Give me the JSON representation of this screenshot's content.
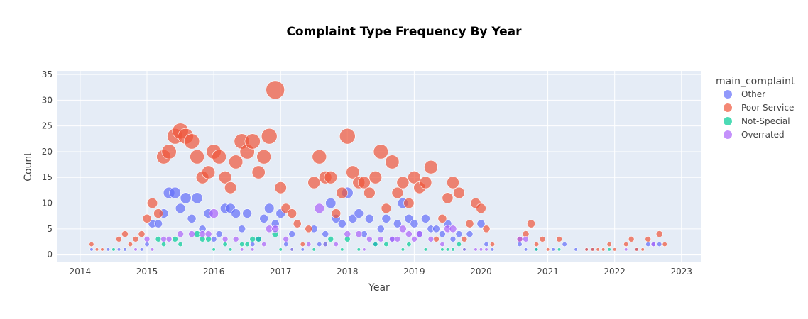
{
  "chart_data": {
    "type": "scatter",
    "title": "Complaint Type Frequency By Year",
    "xlabel": "Year",
    "ylabel": "Count",
    "xlim": [
      2013.65,
      2023.3
    ],
    "ylim": [
      -1.5,
      35.7
    ],
    "x_ticks": [
      "2014",
      "2015",
      "2016",
      "2017",
      "2018",
      "2019",
      "2020",
      "2021",
      "2022",
      "2023"
    ],
    "y_ticks": [
      0,
      5,
      10,
      15,
      20,
      25,
      30,
      35
    ],
    "grid": true,
    "legend_title": "main_complaint",
    "legend_position": "right",
    "size_max_value": 32,
    "series": [
      {
        "name": "Other",
        "color": "#636efa",
        "points": [
          [
            2014.17,
            1
          ],
          [
            2014.42,
            1
          ],
          [
            2014.58,
            1
          ],
          [
            2014.67,
            1
          ],
          [
            2014.92,
            1
          ],
          [
            2015.0,
            2
          ],
          [
            2015.08,
            6
          ],
          [
            2015.17,
            6
          ],
          [
            2015.25,
            8
          ],
          [
            2015.33,
            12
          ],
          [
            2015.42,
            12
          ],
          [
            2015.5,
            9
          ],
          [
            2015.58,
            11
          ],
          [
            2015.67,
            7
          ],
          [
            2015.75,
            11
          ],
          [
            2015.83,
            5
          ],
          [
            2015.92,
            8
          ],
          [
            2016.0,
            3
          ],
          [
            2016.08,
            4
          ],
          [
            2016.17,
            9
          ],
          [
            2016.25,
            9
          ],
          [
            2016.33,
            8
          ],
          [
            2016.42,
            5
          ],
          [
            2016.5,
            8
          ],
          [
            2016.58,
            2
          ],
          [
            2016.67,
            3
          ],
          [
            2016.75,
            7
          ],
          [
            2016.83,
            9
          ],
          [
            2016.92,
            6
          ],
          [
            2017.0,
            8
          ],
          [
            2017.08,
            2
          ],
          [
            2017.17,
            4
          ],
          [
            2017.33,
            1
          ],
          [
            2017.5,
            5
          ],
          [
            2017.58,
            2
          ],
          [
            2017.67,
            4
          ],
          [
            2017.75,
            10
          ],
          [
            2017.83,
            7
          ],
          [
            2017.92,
            6
          ],
          [
            2018.0,
            12
          ],
          [
            2018.08,
            7
          ],
          [
            2018.17,
            8
          ],
          [
            2018.25,
            4
          ],
          [
            2018.33,
            7
          ],
          [
            2018.42,
            2
          ],
          [
            2018.5,
            5
          ],
          [
            2018.58,
            7
          ],
          [
            2018.67,
            3
          ],
          [
            2018.75,
            6
          ],
          [
            2018.83,
            10
          ],
          [
            2018.92,
            7
          ],
          [
            2019.0,
            6
          ],
          [
            2019.08,
            4
          ],
          [
            2019.17,
            7
          ],
          [
            2019.25,
            5
          ],
          [
            2019.33,
            5
          ],
          [
            2019.42,
            4
          ],
          [
            2019.5,
            6
          ],
          [
            2019.58,
            3
          ],
          [
            2019.67,
            4
          ],
          [
            2019.83,
            4
          ],
          [
            2020.0,
            6
          ],
          [
            2020.08,
            2
          ],
          [
            2020.17,
            1
          ],
          [
            2020.58,
            2
          ],
          [
            2020.67,
            1
          ],
          [
            2020.83,
            1
          ],
          [
            2021.08,
            1
          ],
          [
            2021.25,
            2
          ],
          [
            2021.42,
            1
          ],
          [
            2021.58,
            1
          ],
          [
            2021.67,
            1
          ],
          [
            2022.33,
            1
          ],
          [
            2022.5,
            2
          ],
          [
            2022.58,
            2
          ],
          [
            2022.67,
            2
          ]
        ]
      },
      {
        "name": "Poor-Service",
        "color": "#ef553b",
        "points": [
          [
            2014.17,
            2
          ],
          [
            2014.25,
            1
          ],
          [
            2014.33,
            1
          ],
          [
            2014.58,
            3
          ],
          [
            2014.67,
            4
          ],
          [
            2014.75,
            2
          ],
          [
            2014.83,
            3
          ],
          [
            2014.92,
            4
          ],
          [
            2015.0,
            7
          ],
          [
            2015.08,
            10
          ],
          [
            2015.17,
            8
          ],
          [
            2015.25,
            19
          ],
          [
            2015.33,
            20
          ],
          [
            2015.42,
            23
          ],
          [
            2015.5,
            24
          ],
          [
            2015.58,
            23
          ],
          [
            2015.67,
            22
          ],
          [
            2015.75,
            19
          ],
          [
            2015.83,
            15
          ],
          [
            2015.92,
            16
          ],
          [
            2016.0,
            20
          ],
          [
            2016.08,
            19
          ],
          [
            2016.17,
            15
          ],
          [
            2016.25,
            13
          ],
          [
            2016.33,
            18
          ],
          [
            2016.42,
            22
          ],
          [
            2016.5,
            20
          ],
          [
            2016.58,
            22
          ],
          [
            2016.67,
            16
          ],
          [
            2016.75,
            19
          ],
          [
            2016.83,
            23
          ],
          [
            2016.92,
            32
          ],
          [
            2017.0,
            13
          ],
          [
            2017.08,
            9
          ],
          [
            2017.17,
            8
          ],
          [
            2017.25,
            6
          ],
          [
            2017.33,
            2
          ],
          [
            2017.42,
            5
          ],
          [
            2017.5,
            14
          ],
          [
            2017.58,
            19
          ],
          [
            2017.67,
            15
          ],
          [
            2017.75,
            15
          ],
          [
            2017.83,
            8
          ],
          [
            2017.92,
            12
          ],
          [
            2018.0,
            23
          ],
          [
            2018.08,
            16
          ],
          [
            2018.17,
            14
          ],
          [
            2018.25,
            14
          ],
          [
            2018.33,
            12
          ],
          [
            2018.42,
            15
          ],
          [
            2018.5,
            20
          ],
          [
            2018.58,
            9
          ],
          [
            2018.67,
            18
          ],
          [
            2018.75,
            12
          ],
          [
            2018.83,
            14
          ],
          [
            2018.92,
            10
          ],
          [
            2019.0,
            15
          ],
          [
            2019.08,
            13
          ],
          [
            2019.17,
            14
          ],
          [
            2019.25,
            17
          ],
          [
            2019.33,
            3
          ],
          [
            2019.42,
            7
          ],
          [
            2019.5,
            11
          ],
          [
            2019.58,
            14
          ],
          [
            2019.67,
            12
          ],
          [
            2019.75,
            3
          ],
          [
            2019.83,
            6
          ],
          [
            2019.92,
            10
          ],
          [
            2020.0,
            9
          ],
          [
            2020.08,
            5
          ],
          [
            2020.17,
            2
          ],
          [
            2020.58,
            3
          ],
          [
            2020.67,
            4
          ],
          [
            2020.75,
            6
          ],
          [
            2020.83,
            2
          ],
          [
            2020.92,
            3
          ],
          [
            2021.0,
            1
          ],
          [
            2021.17,
            3
          ],
          [
            2021.58,
            1
          ],
          [
            2021.67,
            1
          ],
          [
            2021.75,
            1
          ],
          [
            2021.83,
            1
          ],
          [
            2021.92,
            2
          ],
          [
            2022.0,
            1
          ],
          [
            2022.17,
            2
          ],
          [
            2022.25,
            3
          ],
          [
            2022.33,
            1
          ],
          [
            2022.42,
            1
          ],
          [
            2022.5,
            3
          ],
          [
            2022.67,
            4
          ],
          [
            2022.75,
            2
          ]
        ]
      },
      {
        "name": "Not-Special",
        "color": "#00cc96",
        "points": [
          [
            2014.5,
            1
          ],
          [
            2015.17,
            3
          ],
          [
            2015.25,
            2
          ],
          [
            2015.42,
            3
          ],
          [
            2015.5,
            2
          ],
          [
            2015.75,
            4
          ],
          [
            2015.83,
            3
          ],
          [
            2015.92,
            3
          ],
          [
            2016.0,
            1
          ],
          [
            2016.17,
            2
          ],
          [
            2016.25,
            1
          ],
          [
            2016.42,
            2
          ],
          [
            2016.5,
            2
          ],
          [
            2016.58,
            3
          ],
          [
            2016.67,
            3
          ],
          [
            2016.92,
            4
          ],
          [
            2017.0,
            1
          ],
          [
            2017.17,
            1
          ],
          [
            2017.5,
            1
          ],
          [
            2017.67,
            2
          ],
          [
            2017.75,
            3
          ],
          [
            2017.92,
            1
          ],
          [
            2018.0,
            3
          ],
          [
            2018.17,
            1
          ],
          [
            2018.42,
            2
          ],
          [
            2018.58,
            2
          ],
          [
            2018.83,
            1
          ],
          [
            2018.92,
            2
          ],
          [
            2019.17,
            1
          ],
          [
            2019.42,
            1
          ],
          [
            2019.5,
            1
          ],
          [
            2019.58,
            1
          ],
          [
            2019.67,
            2
          ],
          [
            2019.75,
            1
          ],
          [
            2020.83,
            1
          ],
          [
            2021.17,
            1
          ],
          [
            2021.92,
            1
          ]
        ]
      },
      {
        "name": "Overrated",
        "color": "#ab63fa",
        "points": [
          [
            2014.83,
            1
          ],
          [
            2015.0,
            3
          ],
          [
            2015.08,
            1
          ],
          [
            2015.25,
            3
          ],
          [
            2015.33,
            3
          ],
          [
            2015.5,
            4
          ],
          [
            2015.67,
            4
          ],
          [
            2015.83,
            4
          ],
          [
            2015.92,
            4
          ],
          [
            2016.0,
            8
          ],
          [
            2016.17,
            3
          ],
          [
            2016.33,
            3
          ],
          [
            2016.42,
            1
          ],
          [
            2016.58,
            1
          ],
          [
            2016.75,
            2
          ],
          [
            2016.83,
            5
          ],
          [
            2016.92,
            5
          ],
          [
            2017.08,
            3
          ],
          [
            2017.17,
            1
          ],
          [
            2017.42,
            2
          ],
          [
            2017.58,
            9
          ],
          [
            2017.67,
            2
          ],
          [
            2017.83,
            2
          ],
          [
            2018.0,
            4
          ],
          [
            2018.17,
            4
          ],
          [
            2018.25,
            1
          ],
          [
            2018.33,
            3
          ],
          [
            2018.5,
            3
          ],
          [
            2018.67,
            3
          ],
          [
            2018.75,
            3
          ],
          [
            2018.83,
            5
          ],
          [
            2018.92,
            4
          ],
          [
            2019.0,
            3
          ],
          [
            2019.08,
            4
          ],
          [
            2019.25,
            3
          ],
          [
            2019.42,
            2
          ],
          [
            2019.5,
            5
          ],
          [
            2019.58,
            5
          ],
          [
            2019.75,
            1
          ],
          [
            2019.92,
            1
          ],
          [
            2020.0,
            1
          ],
          [
            2020.08,
            1
          ],
          [
            2020.58,
            3
          ],
          [
            2020.67,
            3
          ],
          [
            2022.17,
            1
          ],
          [
            2022.58,
            2
          ]
        ]
      }
    ]
  }
}
